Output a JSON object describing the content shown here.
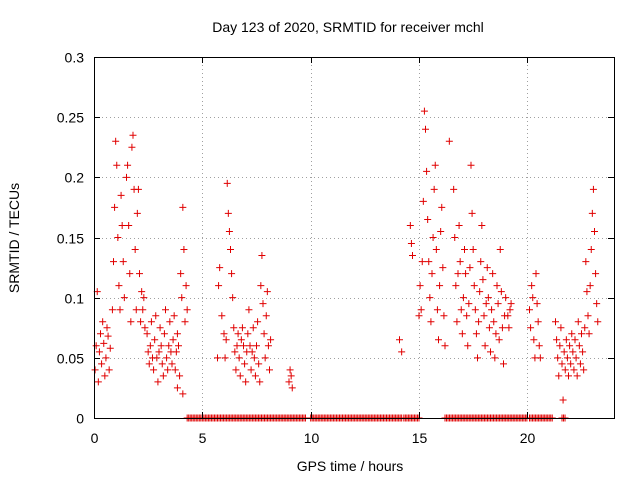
{
  "chart_data": {
    "type": "scatter",
    "title": "Day 123 of 2020, SRMTID for receiver mchl",
    "xlabel": "GPS time / hours",
    "ylabel": "SRMTID / TECUs",
    "xlim": [
      0,
      24
    ],
    "ylim": [
      0,
      0.3
    ],
    "xticks": [
      0,
      5,
      10,
      15,
      20
    ],
    "xtick_labels": [
      "0",
      "5",
      "10",
      "15",
      "20"
    ],
    "yticks": [
      0,
      0.05,
      0.1,
      0.15,
      0.2,
      0.25,
      0.3
    ],
    "ytick_labels": [
      "0",
      "0.05",
      "0.1",
      "0.15",
      "0.2",
      "0.25",
      "0.3"
    ],
    "grid": true,
    "marker": "+",
    "color": "#e00000",
    "series": [
      {
        "name": "SRMTID",
        "points": [
          [
            0.05,
            0.04
          ],
          [
            0.1,
            0.06
          ],
          [
            0.15,
            0.105
          ],
          [
            0.2,
            0.03
          ],
          [
            0.25,
            0.055
          ],
          [
            0.3,
            0.07
          ],
          [
            0.35,
            0.045
          ],
          [
            0.4,
            0.08
          ],
          [
            0.45,
            0.062
          ],
          [
            0.5,
            0.035
          ],
          [
            0.55,
            0.05
          ],
          [
            0.6,
            0.075
          ],
          [
            0.65,
            0.068
          ],
          [
            0.7,
            0.04
          ],
          [
            0.75,
            0.058
          ],
          [
            0.85,
            0.09
          ],
          [
            0.9,
            0.13
          ],
          [
            0.95,
            0.175
          ],
          [
            1.0,
            0.23
          ],
          [
            1.05,
            0.21
          ],
          [
            1.1,
            0.15
          ],
          [
            1.15,
            0.11
          ],
          [
            1.2,
            0.09
          ],
          [
            1.25,
            0.185
          ],
          [
            1.3,
            0.16
          ],
          [
            1.35,
            0.13
          ],
          [
            1.4,
            0.1
          ],
          [
            1.5,
            0.2
          ],
          [
            1.55,
            0.21
          ],
          [
            1.6,
            0.16
          ],
          [
            1.65,
            0.12
          ],
          [
            1.7,
            0.08
          ],
          [
            1.75,
            0.225
          ],
          [
            1.8,
            0.235
          ],
          [
            1.85,
            0.19
          ],
          [
            1.9,
            0.14
          ],
          [
            1.95,
            0.09
          ],
          [
            2.0,
            0.17
          ],
          [
            2.05,
            0.19
          ],
          [
            2.1,
            0.12
          ],
          [
            2.15,
            0.08
          ],
          [
            2.2,
            0.105
          ],
          [
            2.25,
            0.09
          ],
          [
            2.3,
            0.1
          ],
          [
            2.35,
            0.075
          ],
          [
            2.45,
            0.07
          ],
          [
            2.5,
            0.055
          ],
          [
            2.55,
            0.045
          ],
          [
            2.6,
            0.06
          ],
          [
            2.65,
            0.08
          ],
          [
            2.7,
            0.05
          ],
          [
            2.75,
            0.04
          ],
          [
            2.8,
            0.065
          ],
          [
            2.85,
            0.085
          ],
          [
            2.9,
            0.05
          ],
          [
            2.95,
            0.03
          ],
          [
            3.0,
            0.055
          ],
          [
            3.05,
            0.075
          ],
          [
            3.1,
            0.06
          ],
          [
            3.15,
            0.045
          ],
          [
            3.2,
            0.035
          ],
          [
            3.25,
            0.07
          ],
          [
            3.3,
            0.09
          ],
          [
            3.35,
            0.05
          ],
          [
            3.4,
            0.04
          ],
          [
            3.45,
            0.06
          ],
          [
            3.5,
            0.08
          ],
          [
            3.55,
            0.055
          ],
          [
            3.6,
            0.045
          ],
          [
            3.65,
            0.065
          ],
          [
            3.7,
            0.085
          ],
          [
            3.75,
            0.04
          ],
          [
            3.8,
            0.055
          ],
          [
            3.85,
            0.07
          ],
          [
            3.9,
            0.06
          ],
          [
            3.95,
            0.035
          ],
          [
            4.0,
            0.12
          ],
          [
            4.05,
            0.1
          ],
          [
            4.1,
            0.175
          ],
          [
            4.15,
            0.14
          ],
          [
            4.2,
            0.08
          ],
          [
            4.25,
            0.11
          ],
          [
            4.3,
            0.09
          ],
          [
            4.1,
            0.02
          ],
          [
            3.85,
            0.025
          ],
          [
            5.7,
            0.05
          ],
          [
            5.75,
            0.11
          ],
          [
            5.8,
            0.125
          ],
          [
            5.9,
            0.085
          ],
          [
            6.0,
            0.07
          ],
          [
            6.05,
            0.05
          ],
          [
            6.1,
            0.065
          ],
          [
            6.15,
            0.195
          ],
          [
            6.2,
            0.17
          ],
          [
            6.25,
            0.155
          ],
          [
            6.3,
            0.14
          ],
          [
            6.35,
            0.12
          ],
          [
            6.4,
            0.1
          ],
          [
            6.45,
            0.075
          ],
          [
            6.5,
            0.055
          ],
          [
            6.55,
            0.04
          ],
          [
            6.6,
            0.06
          ],
          [
            6.65,
            0.07
          ],
          [
            6.7,
            0.05
          ],
          [
            6.75,
            0.035
          ],
          [
            6.8,
            0.065
          ],
          [
            6.85,
            0.075
          ],
          [
            6.9,
            0.06
          ],
          [
            6.95,
            0.045
          ],
          [
            7.0,
            0.03
          ],
          [
            7.05,
            0.055
          ],
          [
            7.1,
            0.07
          ],
          [
            7.15,
            0.09
          ],
          [
            7.2,
            0.06
          ],
          [
            7.25,
            0.04
          ],
          [
            7.3,
            0.055
          ],
          [
            7.35,
            0.075
          ],
          [
            7.4,
            0.05
          ],
          [
            7.45,
            0.035
          ],
          [
            7.5,
            0.06
          ],
          [
            7.55,
            0.08
          ],
          [
            7.6,
            0.045
          ],
          [
            7.65,
            0.03
          ],
          [
            7.7,
            0.11
          ],
          [
            7.75,
            0.135
          ],
          [
            7.8,
            0.095
          ],
          [
            7.85,
            0.07
          ],
          [
            7.9,
            0.05
          ],
          [
            7.95,
            0.085
          ],
          [
            8.0,
            0.105
          ],
          [
            8.05,
            0.06
          ],
          [
            8.1,
            0.04
          ],
          [
            8.15,
            0.065
          ],
          [
            9.0,
            0.03
          ],
          [
            9.05,
            0.04
          ],
          [
            9.1,
            0.035
          ],
          [
            9.15,
            0.025
          ],
          [
            14.1,
            0.065
          ],
          [
            14.2,
            0.055
          ],
          [
            14.6,
            0.16
          ],
          [
            14.65,
            0.145
          ],
          [
            14.7,
            0.135
          ],
          [
            15.0,
            0.085
          ],
          [
            15.05,
            0.11
          ],
          [
            15.1,
            0.09
          ],
          [
            15.15,
            0.13
          ],
          [
            15.2,
            0.18
          ],
          [
            15.25,
            0.255
          ],
          [
            15.3,
            0.24
          ],
          [
            15.35,
            0.205
          ],
          [
            15.4,
            0.165
          ],
          [
            15.45,
            0.13
          ],
          [
            15.5,
            0.1
          ],
          [
            15.55,
            0.08
          ],
          [
            15.6,
            0.12
          ],
          [
            15.65,
            0.15
          ],
          [
            15.7,
            0.19
          ],
          [
            15.75,
            0.21
          ],
          [
            15.8,
            0.14
          ],
          [
            15.85,
            0.09
          ],
          [
            15.9,
            0.065
          ],
          [
            15.95,
            0.11
          ],
          [
            16.0,
            0.155
          ],
          [
            16.05,
            0.175
          ],
          [
            16.1,
            0.125
          ],
          [
            16.15,
            0.085
          ],
          [
            16.2,
            0.06
          ],
          [
            16.4,
            0.23
          ],
          [
            16.6,
            0.19
          ],
          [
            16.65,
            0.15
          ],
          [
            16.7,
            0.11
          ],
          [
            16.75,
            0.08
          ],
          [
            16.8,
            0.12
          ],
          [
            16.85,
            0.16
          ],
          [
            16.9,
            0.13
          ],
          [
            16.95,
            0.09
          ],
          [
            17.0,
            0.07
          ],
          [
            17.05,
            0.1
          ],
          [
            17.1,
            0.14
          ],
          [
            17.15,
            0.12
          ],
          [
            17.2,
            0.085
          ],
          [
            17.25,
            0.06
          ],
          [
            17.3,
            0.095
          ],
          [
            17.35,
            0.125
          ],
          [
            17.4,
            0.21
          ],
          [
            17.45,
            0.17
          ],
          [
            17.5,
            0.14
          ],
          [
            17.55,
            0.11
          ],
          [
            17.6,
            0.09
          ],
          [
            17.65,
            0.07
          ],
          [
            17.7,
            0.05
          ],
          [
            17.75,
            0.08
          ],
          [
            17.8,
            0.105
          ],
          [
            17.85,
            0.13
          ],
          [
            17.9,
            0.16
          ],
          [
            17.95,
            0.115
          ],
          [
            18.0,
            0.085
          ],
          [
            18.05,
            0.06
          ],
          [
            18.1,
            0.095
          ],
          [
            18.15,
            0.125
          ],
          [
            18.2,
            0.1
          ],
          [
            18.25,
            0.075
          ],
          [
            18.3,
            0.055
          ],
          [
            18.35,
            0.09
          ],
          [
            18.4,
            0.12
          ],
          [
            18.45,
            0.08
          ],
          [
            18.5,
            0.05
          ],
          [
            18.55,
            0.07
          ],
          [
            18.6,
            0.11
          ],
          [
            18.65,
            0.095
          ],
          [
            18.7,
            0.065
          ],
          [
            18.75,
            0.14
          ],
          [
            18.8,
            0.105
          ],
          [
            18.85,
            0.075
          ],
          [
            18.9,
            0.045
          ],
          [
            18.95,
            0.085
          ],
          [
            19.0,
            0.1
          ],
          [
            19.1,
            0.085
          ],
          [
            19.15,
            0.075
          ],
          [
            19.2,
            0.09
          ],
          [
            19.25,
            0.095
          ],
          [
            20.1,
            0.09
          ],
          [
            20.15,
            0.075
          ],
          [
            20.2,
            0.11
          ],
          [
            20.25,
            0.1
          ],
          [
            20.3,
            0.065
          ],
          [
            20.35,
            0.05
          ],
          [
            20.4,
            0.12
          ],
          [
            20.45,
            0.095
          ],
          [
            20.5,
            0.08
          ],
          [
            20.55,
            0.06
          ],
          [
            20.6,
            0.05
          ],
          [
            21.3,
            0.08
          ],
          [
            21.35,
            0.065
          ],
          [
            21.4,
            0.05
          ],
          [
            21.45,
            0.035
          ],
          [
            21.5,
            0.06
          ],
          [
            21.55,
            0.075
          ],
          [
            21.6,
            0.045
          ],
          [
            21.65,
            0.015
          ],
          [
            21.7,
            0.055
          ],
          [
            21.75,
            0.04
          ],
          [
            21.8,
            0.065
          ],
          [
            21.85,
            0.05
          ],
          [
            21.9,
            0.035
          ],
          [
            21.95,
            0.06
          ],
          [
            22.0,
            0.045
          ],
          [
            22.05,
            0.07
          ],
          [
            22.1,
            0.055
          ],
          [
            22.15,
            0.04
          ],
          [
            22.2,
            0.065
          ],
          [
            22.25,
            0.05
          ],
          [
            22.3,
            0.035
          ],
          [
            22.35,
            0.08
          ],
          [
            22.4,
            0.06
          ],
          [
            22.45,
            0.045
          ],
          [
            22.5,
            0.07
          ],
          [
            22.55,
            0.055
          ],
          [
            22.6,
            0.04
          ],
          [
            22.65,
            0.075
          ],
          [
            22.7,
            0.13
          ],
          [
            22.75,
            0.105
          ],
          [
            22.8,
            0.085
          ],
          [
            22.85,
            0.07
          ],
          [
            22.9,
            0.11
          ],
          [
            22.95,
            0.14
          ],
          [
            23.0,
            0.17
          ],
          [
            23.05,
            0.19
          ],
          [
            23.1,
            0.155
          ],
          [
            23.15,
            0.12
          ],
          [
            23.2,
            0.095
          ],
          [
            23.25,
            0.08
          ]
        ]
      }
    ],
    "zero_segments": [
      [
        4.3,
        9.8
      ],
      [
        10.0,
        14.2
      ],
      [
        14.3,
        15.0
      ],
      [
        16.2,
        20.0
      ],
      [
        20.1,
        21.2
      ],
      [
        21.6,
        21.8
      ]
    ]
  }
}
